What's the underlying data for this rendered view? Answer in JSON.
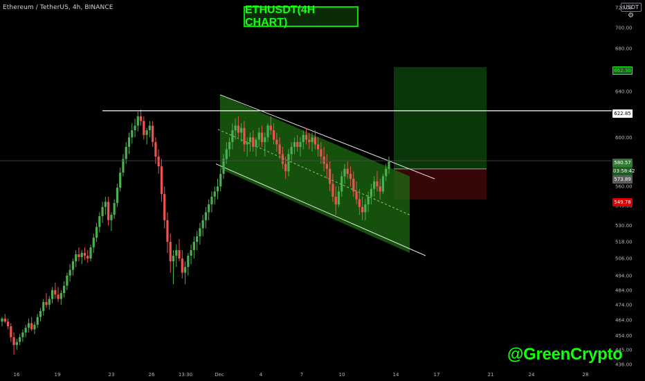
{
  "header": {
    "symbol": "Ethereum / TetherUS, 4h, BINANCE",
    "title": "ETHUSDT(4H CHART)",
    "watermark": "@GreenCrypto",
    "currency": "USDT"
  },
  "colors": {
    "background": "#000000",
    "up": "#26a69a",
    "up_bright": "#4caf50",
    "down": "#ef5350",
    "down_dark": "#b22833",
    "channel_fill": "#1e6b12",
    "target_zone": "#0b3a0b",
    "stop_zone": "#3a0606",
    "accent_green": "#13ff0c",
    "axis_text": "#b2b5be"
  },
  "chart_data": {
    "type": "candlestick",
    "title": "ETHUSDT(4H CHART)",
    "ylim": [
      436,
      725
    ],
    "y_scale": "log",
    "grid": false,
    "y_ticks": [
      "436.00",
      "445.00",
      "454.00",
      "464.00",
      "474.00",
      "484.00",
      "494.00",
      "506.00",
      "518.00",
      "530.00",
      "545.00",
      "560.00",
      "575.00",
      "600.00",
      "620.00",
      "640.00",
      "660.00",
      "680.00",
      "700.00",
      "720.00"
    ],
    "x_ticks": [
      "16",
      "19",
      "23",
      "26",
      "13:30",
      "Dec",
      "4",
      "7",
      "10",
      "14",
      "17",
      "21",
      "24",
      "28"
    ],
    "price_labels": [
      {
        "label": "662.30",
        "value": 662.3,
        "kind": "target"
      },
      {
        "label": "622.85",
        "value": 622.85,
        "kind": "resistance"
      },
      {
        "label": "580.57",
        "value": 580.57,
        "kind": "last"
      },
      {
        "label": "03:58:42",
        "value": 577.3,
        "kind": "countdown"
      },
      {
        "label": "573.89",
        "value": 573.89,
        "kind": "entry"
      },
      {
        "label": "549.78",
        "value": 549.78,
        "kind": "stop"
      }
    ],
    "resistance_level": 622.85,
    "trade": {
      "target": 662.3,
      "entry": 573.89,
      "stop": 549.78,
      "last_price": 580.57
    },
    "channel": {
      "upper_start": [
        0.3,
        637
      ],
      "upper_end": [
        0.62,
        566
      ],
      "lower_start": [
        0.3,
        578
      ],
      "lower_end": [
        0.62,
        508
      ]
    },
    "candles": [
      [
        463,
        466,
        460,
        465
      ],
      [
        465,
        468,
        462,
        463
      ],
      [
        463,
        465,
        458,
        460
      ],
      [
        460,
        462,
        450,
        453
      ],
      [
        453,
        456,
        442,
        448
      ],
      [
        448,
        452,
        445,
        450
      ],
      [
        450,
        455,
        448,
        453
      ],
      [
        453,
        458,
        450,
        456
      ],
      [
        456,
        461,
        453,
        459
      ],
      [
        459,
        465,
        456,
        462
      ],
      [
        462,
        466,
        457,
        458
      ],
      [
        458,
        463,
        455,
        461
      ],
      [
        461,
        468,
        459,
        466
      ],
      [
        466,
        472,
        463,
        470
      ],
      [
        470,
        478,
        467,
        476
      ],
      [
        476,
        482,
        472,
        474
      ],
      [
        474,
        480,
        471,
        478
      ],
      [
        478,
        486,
        475,
        484
      ],
      [
        484,
        489,
        478,
        481
      ],
      [
        481,
        486,
        476,
        478
      ],
      [
        478,
        484,
        474,
        482
      ],
      [
        482,
        490,
        479,
        487
      ],
      [
        487,
        496,
        484,
        494
      ],
      [
        494,
        502,
        490,
        498
      ],
      [
        498,
        506,
        494,
        504
      ],
      [
        504,
        512,
        500,
        509
      ],
      [
        509,
        514,
        504,
        507
      ],
      [
        507,
        512,
        502,
        510
      ],
      [
        510,
        514,
        505,
        508
      ],
      [
        508,
        512,
        503,
        506
      ],
      [
        506,
        516,
        504,
        514
      ],
      [
        514,
        524,
        510,
        521
      ],
      [
        521,
        532,
        518,
        529
      ],
      [
        529,
        540,
        525,
        537
      ],
      [
        537,
        548,
        532,
        544
      ],
      [
        544,
        552,
        538,
        548
      ],
      [
        548,
        552,
        530,
        534
      ],
      [
        534,
        540,
        526,
        538
      ],
      [
        538,
        550,
        535,
        547
      ],
      [
        547,
        562,
        544,
        559
      ],
      [
        559,
        575,
        556,
        571
      ],
      [
        571,
        586,
        568,
        582
      ],
      [
        582,
        596,
        578,
        592
      ],
      [
        592,
        604,
        586,
        600
      ],
      [
        600,
        612,
        595,
        606
      ],
      [
        606,
        616,
        600,
        610
      ],
      [
        610,
        622,
        605,
        618
      ],
      [
        618,
        624,
        610,
        614
      ],
      [
        614,
        618,
        598,
        602
      ],
      [
        602,
        608,
        594,
        606
      ],
      [
        606,
        614,
        600,
        610
      ],
      [
        610,
        614,
        592,
        596
      ],
      [
        596,
        600,
        578,
        584
      ],
      [
        584,
        590,
        570,
        576
      ],
      [
        576,
        582,
        548,
        554
      ],
      [
        554,
        560,
        528,
        534
      ],
      [
        534,
        540,
        510,
        518
      ],
      [
        518,
        524,
        496,
        504
      ],
      [
        504,
        512,
        488,
        508
      ],
      [
        508,
        516,
        500,
        512
      ],
      [
        512,
        520,
        504,
        506
      ],
      [
        506,
        512,
        492,
        496
      ],
      [
        496,
        504,
        488,
        500
      ],
      [
        500,
        510,
        494,
        508
      ],
      [
        508,
        516,
        502,
        512
      ],
      [
        512,
        522,
        506,
        518
      ],
      [
        518,
        526,
        512,
        522
      ],
      [
        522,
        532,
        516,
        528
      ],
      [
        528,
        538,
        522,
        534
      ],
      [
        534,
        544,
        528,
        540
      ],
      [
        540,
        550,
        534,
        546
      ],
      [
        546,
        556,
        540,
        552
      ],
      [
        552,
        560,
        546,
        556
      ],
      [
        556,
        566,
        550,
        560
      ],
      [
        560,
        574,
        556,
        570
      ],
      [
        570,
        586,
        566,
        582
      ],
      [
        582,
        596,
        578,
        590
      ],
      [
        590,
        600,
        584,
        596
      ],
      [
        596,
        612,
        590,
        606
      ],
      [
        606,
        616,
        598,
        610
      ],
      [
        610,
        618,
        600,
        604
      ],
      [
        604,
        612,
        596,
        608
      ],
      [
        608,
        614,
        588,
        594
      ],
      [
        594,
        600,
        584,
        596
      ],
      [
        596,
        604,
        588,
        600
      ],
      [
        600,
        606,
        588,
        592
      ],
      [
        592,
        600,
        584,
        598
      ],
      [
        598,
        608,
        592,
        604
      ],
      [
        604,
        610,
        592,
        596
      ],
      [
        596,
        604,
        584,
        600
      ],
      [
        600,
        612,
        596,
        610
      ],
      [
        610,
        618,
        602,
        606
      ],
      [
        606,
        612,
        594,
        598
      ],
      [
        598,
        604,
        588,
        594
      ],
      [
        594,
        600,
        582,
        586
      ],
      [
        586,
        592,
        574,
        578
      ],
      [
        578,
        584,
        566,
        572
      ],
      [
        572,
        590,
        568,
        586
      ],
      [
        586,
        596,
        580,
        592
      ],
      [
        592,
        600,
        586,
        596
      ],
      [
        596,
        602,
        588,
        592
      ],
      [
        592,
        600,
        584,
        596
      ],
      [
        596,
        606,
        590,
        602
      ],
      [
        602,
        608,
        594,
        598
      ],
      [
        598,
        604,
        590,
        596
      ],
      [
        596,
        604,
        588,
        600
      ],
      [
        600,
        606,
        590,
        594
      ],
      [
        594,
        600,
        584,
        590
      ],
      [
        590,
        596,
        578,
        584
      ],
      [
        584,
        592,
        572,
        578
      ],
      [
        578,
        586,
        566,
        574
      ],
      [
        574,
        580,
        556,
        562
      ],
      [
        562,
        570,
        548,
        552
      ],
      [
        552,
        560,
        538,
        546
      ],
      [
        546,
        560,
        544,
        556
      ],
      [
        556,
        572,
        552,
        568
      ],
      [
        568,
        578,
        562,
        574
      ],
      [
        574,
        580,
        566,
        570
      ],
      [
        570,
        576,
        560,
        566
      ],
      [
        566,
        572,
        552,
        556
      ],
      [
        556,
        564,
        546,
        550
      ],
      [
        550,
        558,
        538,
        544
      ],
      [
        544,
        552,
        534,
        540
      ],
      [
        540,
        550,
        534,
        546
      ],
      [
        546,
        556,
        540,
        552
      ],
      [
        552,
        562,
        546,
        558
      ],
      [
        558,
        568,
        552,
        564
      ],
      [
        564,
        572,
        556,
        560
      ],
      [
        560,
        566,
        550,
        556
      ],
      [
        556,
        570,
        554,
        568
      ],
      [
        568,
        578,
        564,
        574
      ],
      [
        574,
        584,
        570,
        581
      ]
    ]
  }
}
